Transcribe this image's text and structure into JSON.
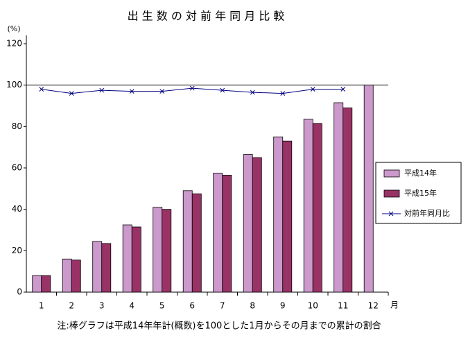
{
  "chart_data": {
    "type": "bar",
    "title": "出 生 数 の 対 前 年 同 月 比 較",
    "y_unit": "(%)",
    "x_unit": "月",
    "note": "注:棒グラフは平成14年年計(概数)を100とした1月からその月までの累計の割合",
    "categories": [
      "1",
      "2",
      "3",
      "4",
      "5",
      "6",
      "7",
      "8",
      "9",
      "10",
      "11",
      "12"
    ],
    "series": [
      {
        "name": "平成14年",
        "type": "bar",
        "color": "#cc99cc",
        "values": [
          8,
          16,
          24.5,
          32.5,
          41,
          49,
          57.5,
          66.5,
          75,
          83.5,
          91.5,
          100
        ]
      },
      {
        "name": "平成15年",
        "type": "bar",
        "color": "#993366",
        "values": [
          8,
          15.5,
          23.5,
          31.5,
          40,
          47.5,
          56.5,
          65,
          73,
          81.5,
          89,
          null
        ]
      },
      {
        "name": "対前年同月比",
        "type": "line",
        "color": "#000080",
        "values": [
          98,
          96,
          97.5,
          97,
          97,
          98.5,
          97.5,
          96.5,
          96,
          98,
          98,
          null
        ]
      }
    ],
    "ylim": [
      0,
      120
    ],
    "yticks": [
      0,
      20,
      40,
      60,
      80,
      100,
      120
    ],
    "reference_line": 100,
    "grid": false,
    "legend": "right"
  }
}
